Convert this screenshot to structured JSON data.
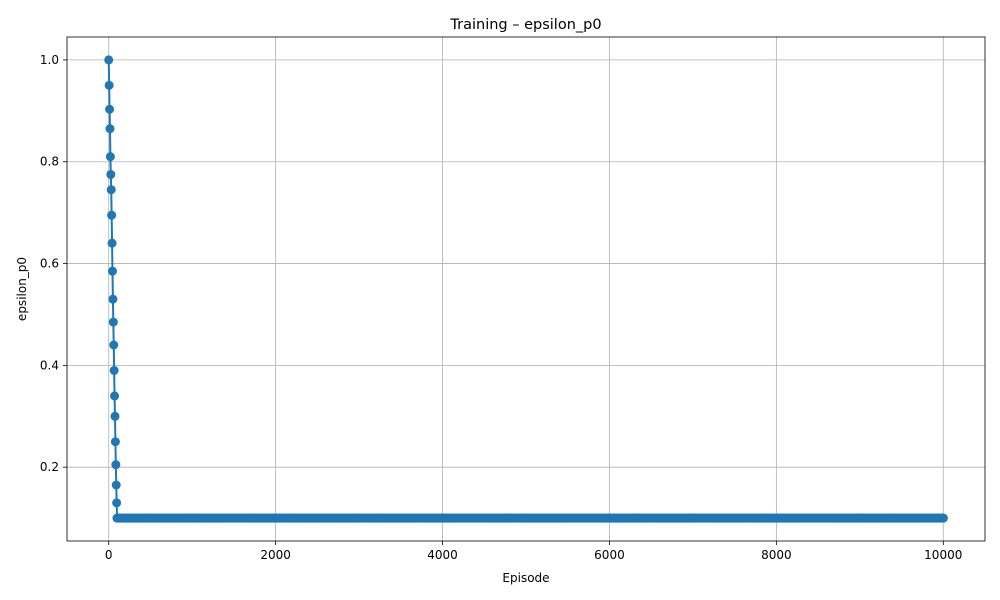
{
  "chart_data": {
    "type": "line",
    "title": "Training – epsilon_p0",
    "xlabel": "Episode",
    "ylabel": "epsilon_p0",
    "xlim": [
      -500,
      10500
    ],
    "ylim": [
      0.055,
      1.045
    ],
    "grid": true,
    "x_ticks": [
      0,
      2000,
      4000,
      6000,
      8000,
      10000
    ],
    "x_tick_labels": [
      "0",
      "2000",
      "4000",
      "6000",
      "8000",
      "10000"
    ],
    "y_ticks": [
      0.2,
      0.4,
      0.6,
      0.8,
      1.0
    ],
    "y_tick_labels": [
      "0.2",
      "0.4",
      "0.6",
      "0.8",
      "1.0"
    ],
    "marker": "circle",
    "series": [
      {
        "color": "#1f77b4",
        "description": "epsilon decays from 1.0 to 0.1 within ~100 episodes, then stays at 0.1 until episode 10000",
        "x": [
          0,
          5,
          10,
          15,
          20,
          25,
          30,
          35,
          40,
          45,
          50,
          55,
          60,
          65,
          70,
          75,
          80,
          85,
          90,
          95,
          100,
          200,
          500,
          1000,
          2000,
          3000,
          4000,
          5000,
          6000,
          7000,
          8000,
          9000,
          10000
        ],
        "y": [
          1.0,
          0.95,
          0.903,
          0.865,
          0.81,
          0.775,
          0.745,
          0.695,
          0.64,
          0.585,
          0.53,
          0.485,
          0.44,
          0.39,
          0.34,
          0.3,
          0.25,
          0.205,
          0.165,
          0.13,
          0.1,
          0.1,
          0.1,
          0.1,
          0.1,
          0.1,
          0.1,
          0.1,
          0.1,
          0.1,
          0.1,
          0.1,
          0.1
        ]
      }
    ]
  }
}
